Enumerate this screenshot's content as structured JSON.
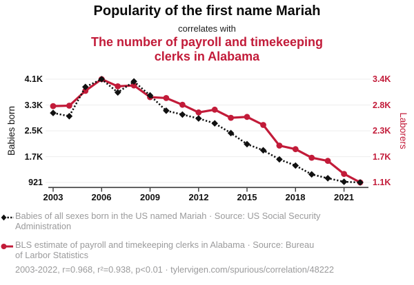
{
  "colors": {
    "accent_red": "#c21b39",
    "series_black": "#111111",
    "legend_gray": "#9a9a9b",
    "gridline": "#f0f0f0",
    "axis_line": "#3a3a3a"
  },
  "chart_data": {
    "type": "line",
    "title": "Popularity of the first name Mariah",
    "subtitle": "correlates with",
    "secondary_title": "The number of payroll and timekeeping clerks in Alabama",
    "secondary_title_lines": [
      "The number of payroll and timekeeping",
      "clerks in Alabama"
    ],
    "x": [
      2003,
      2004,
      2005,
      2006,
      2007,
      2008,
      2009,
      2010,
      2011,
      2012,
      2013,
      2014,
      2015,
      2016,
      2017,
      2018,
      2019,
      2020,
      2021,
      2022
    ],
    "x_tick_labels": [
      "2003",
      "2006",
      "2009",
      "2012",
      "2015",
      "2018",
      "2021"
    ],
    "left_axis": {
      "label": "Babies born",
      "tick_labels": [
        "4.1K",
        "3.3K",
        "2.5K",
        "1.7K",
        "921"
      ],
      "min": 921,
      "max": 4100
    },
    "right_axis": {
      "label": "Laborers",
      "tick_labels": [
        "3.4K",
        "2.8K",
        "2.3K",
        "1.7K",
        "1.1K"
      ],
      "min": 1100,
      "max": 3400
    },
    "grid": true,
    "legend_position": "bottom",
    "series": [
      {
        "name": "Babies of all sexes born in the US named Mariah",
        "axis": "left",
        "line": "dotted",
        "marker": "diamond",
        "color": "#111111",
        "values": [
          3060,
          2960,
          3860,
          4100,
          3690,
          4030,
          3600,
          3130,
          3010,
          2890,
          2740,
          2440,
          2100,
          1910,
          1630,
          1440,
          1170,
          1050,
          940,
          921
        ]
      },
      {
        "name": "BLS estimate of payroll and timekeeping clerks in Alabama",
        "axis": "right",
        "line": "solid",
        "marker": "circle",
        "color": "#c21b39",
        "values": [
          2800,
          2810,
          3140,
          3400,
          3240,
          3260,
          3000,
          2980,
          2830,
          2660,
          2720,
          2540,
          2560,
          2380,
          1920,
          1840,
          1650,
          1580,
          1290,
          1100
        ]
      }
    ]
  },
  "legend": {
    "items": [
      {
        "lines": [
          "Babies of all sexes born in the US named Mariah · Source: US Social Security",
          "Administration"
        ]
      },
      {
        "lines": [
          "BLS estimate of payroll and timekeeping clerks in Alabama · Source: Bureau",
          "of Larbor Statistics"
        ]
      }
    ]
  },
  "footer": {
    "stats_line": "2003-2022, r=0.968, r²=0.938, p<0.01 · tylervigen.com/spurious/correlation/48222"
  }
}
